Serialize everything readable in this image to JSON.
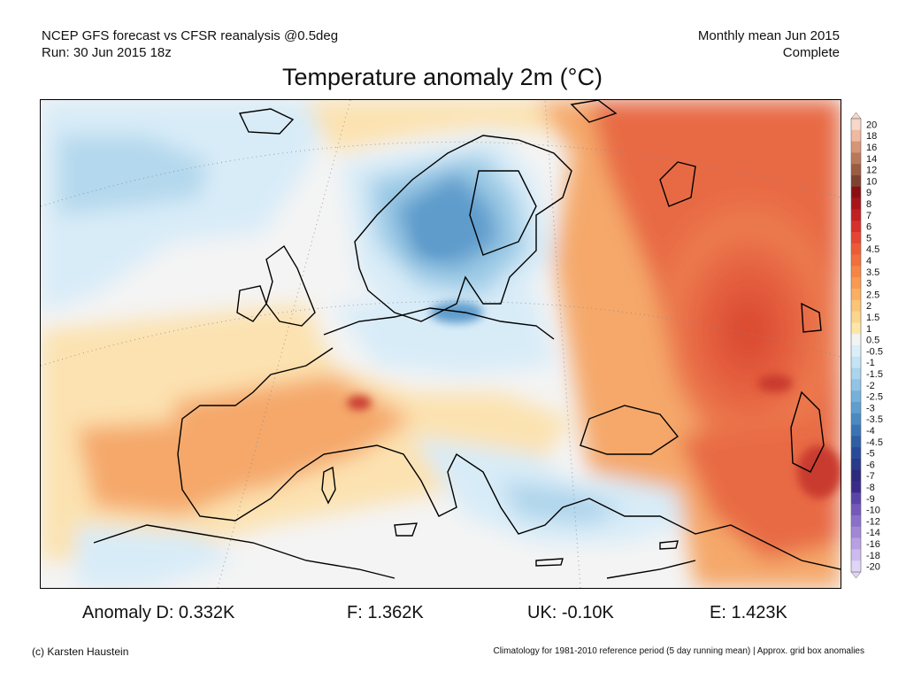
{
  "header": {
    "line1_left": "NCEP GFS forecast vs CFSR reanalysis @0.5deg",
    "line2_left": "Run: 30 Jun 2015 18z",
    "line1_right": "Monthly mean Jun 2015",
    "line2_right": "Complete"
  },
  "title": "Temperature anomaly 2m (°C)",
  "map": {
    "variable": "2 m temperature anomaly",
    "region": "Europe",
    "colors": {
      "ocean_neutral": "#f4f4f4",
      "cold_light": "#d8ecf8",
      "cold_mid": "#9ccbe6",
      "cold_strong": "#5e9ccc",
      "warm_light": "#fce2b0",
      "warm_mid": "#f5a86a",
      "warm_strong": "#e86a45",
      "warm_max": "#c93a2e",
      "coastline": "#000000"
    }
  },
  "colorbar": {
    "labels": [
      "20",
      "18",
      "16",
      "14",
      "12",
      "10",
      "9",
      "8",
      "7",
      "6",
      "5",
      "4.5",
      "4",
      "3.5",
      "3",
      "2.5",
      "2",
      "1.5",
      "1",
      "0.5",
      "-0.5",
      "-1",
      "-1.5",
      "-2",
      "-2.5",
      "-3",
      "-3.5",
      "-4",
      "-4.5",
      "-5",
      "-6",
      "-7",
      "-8",
      "-9",
      "-10",
      "-12",
      "-14",
      "-16",
      "-18",
      "-20"
    ],
    "colors": [
      "#f7d7c9",
      "#f0b9a1",
      "#d69576",
      "#b9785c",
      "#9b5c44",
      "#7e4232",
      "#8b0f12",
      "#a8141a",
      "#c21f23",
      "#d72f2a",
      "#e54531",
      "#ec5a36",
      "#f16f3c",
      "#f58545",
      "#f89a52",
      "#faaf62",
      "#fbc476",
      "#fcd68c",
      "#fde6a8",
      "#f3f3f3",
      "#dbeef9",
      "#c4e3f4",
      "#abd4ed",
      "#90c3e4",
      "#76b1da",
      "#5f9ece",
      "#4a89c1",
      "#3a73b3",
      "#2f5ea5",
      "#294a98",
      "#2a398a",
      "#2c2a7c",
      "#3a2a8a",
      "#5a44a8",
      "#7459bb",
      "#8a70ca",
      "#a287d7",
      "#b8a0e3",
      "#cdbaee",
      "#e0d4f7"
    ]
  },
  "stats": {
    "d": "Anomaly D: 0.332K",
    "f": "F: 1.362K",
    "uk": "UK: -0.10K",
    "e": "E: 1.423K"
  },
  "footer": {
    "left": "(c) Karsten Haustein",
    "right": "Climatology for 1981-2010 reference period (5 day running mean) | Approx. grid box anomalies"
  }
}
